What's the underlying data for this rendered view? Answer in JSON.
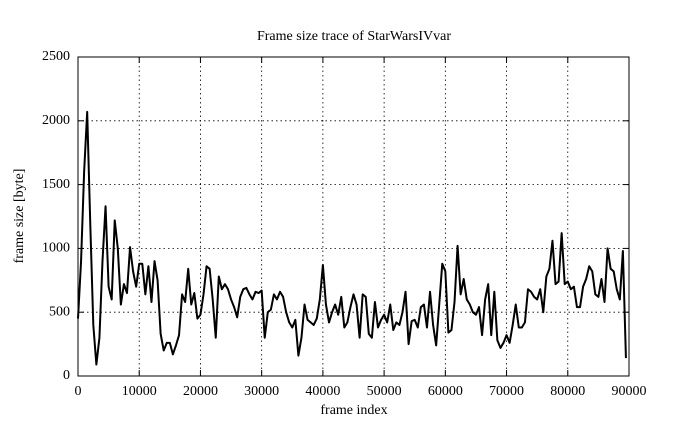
{
  "chart_data": {
    "type": "line",
    "title": "Frame size trace of StarWarsIVvar",
    "xlabel": "frame index",
    "ylabel": "frame size [byte]",
    "xlim": [
      0,
      90000
    ],
    "ylim": [
      0,
      2500
    ],
    "xticks": [
      0,
      10000,
      20000,
      30000,
      40000,
      50000,
      60000,
      70000,
      80000,
      90000
    ],
    "yticks": [
      0,
      500,
      1000,
      1500,
      2000,
      2500
    ],
    "grid": true,
    "series": [
      {
        "color": "#000000",
        "x": [
          0,
          500,
          1000,
          1500,
          2000,
          2500,
          3000,
          3500,
          4000,
          4500,
          5000,
          5500,
          6000,
          6500,
          7000,
          7500,
          8000,
          8500,
          9000,
          9500,
          10000,
          10500,
          11000,
          11500,
          12000,
          12500,
          13000,
          13500,
          14000,
          14500,
          15000,
          15500,
          16000,
          16500,
          17000,
          17500,
          18000,
          18500,
          19000,
          19500,
          20000,
          20500,
          21000,
          21500,
          22000,
          22500,
          23000,
          23500,
          24000,
          24500,
          25000,
          25500,
          26000,
          26500,
          27000,
          27500,
          28000,
          28500,
          29000,
          29500,
          30000,
          30500,
          31000,
          31500,
          32000,
          32500,
          33000,
          33500,
          34000,
          34500,
          35000,
          35500,
          36000,
          36500,
          37000,
          37500,
          38000,
          38500,
          39000,
          39500,
          40000,
          40500,
          41000,
          41500,
          42000,
          42500,
          43000,
          43500,
          44000,
          44500,
          45000,
          45500,
          46000,
          46500,
          47000,
          47500,
          48000,
          48500,
          49000,
          49500,
          50000,
          50500,
          51000,
          51500,
          52000,
          52500,
          53000,
          53500,
          54000,
          54500,
          55000,
          55500,
          56000,
          56500,
          57000,
          57500,
          58000,
          58500,
          59000,
          59500,
          60000,
          60500,
          61000,
          61500,
          62000,
          62500,
          63000,
          63500,
          64000,
          64500,
          65000,
          65500,
          66000,
          66500,
          67000,
          67500,
          68000,
          68500,
          69000,
          69500,
          70000,
          70500,
          71000,
          71500,
          72000,
          72500,
          73000,
          73500,
          74000,
          74500,
          75000,
          75500,
          76000,
          76500,
          77000,
          77500,
          78000,
          78500,
          79000,
          79500,
          80000,
          80500,
          81000,
          81500,
          82000,
          82500,
          83000,
          83500,
          84000,
          84500,
          85000,
          85500,
          86000,
          86500,
          87000,
          87500,
          88000,
          88500,
          89000,
          89500
        ],
        "values": [
          450,
          900,
          1600,
          2070,
          1200,
          400,
          90,
          300,
          900,
          1330,
          700,
          600,
          1220,
          1000,
          560,
          720,
          650,
          1010,
          820,
          700,
          880,
          880,
          640,
          860,
          580,
          900,
          750,
          330,
          200,
          260,
          260,
          170,
          240,
          320,
          640,
          580,
          840,
          560,
          650,
          450,
          480,
          640,
          860,
          840,
          600,
          300,
          780,
          680,
          720,
          680,
          600,
          540,
          460,
          620,
          680,
          690,
          640,
          600,
          660,
          650,
          670,
          300,
          500,
          520,
          640,
          600,
          660,
          620,
          500,
          420,
          380,
          440,
          160,
          300,
          560,
          440,
          420,
          400,
          450,
          600,
          870,
          560,
          420,
          500,
          560,
          480,
          620,
          380,
          420,
          540,
          640,
          560,
          300,
          640,
          620,
          330,
          300,
          580,
          380,
          440,
          480,
          420,
          560,
          360,
          420,
          400,
          500,
          660,
          250,
          430,
          440,
          380,
          540,
          560,
          380,
          660,
          400,
          240,
          560,
          880,
          820,
          340,
          360,
          580,
          1020,
          640,
          760,
          600,
          560,
          500,
          480,
          540,
          320,
          600,
          720,
          320,
          660,
          280,
          220,
          260,
          320,
          260,
          400,
          560,
          380,
          380,
          420,
          680,
          660,
          620,
          600,
          680,
          500,
          780,
          840,
          1060,
          720,
          740,
          1120,
          720,
          740,
          680,
          700,
          540,
          540,
          700,
          760,
          860,
          820,
          640,
          620,
          760,
          580,
          1000,
          840,
          820,
          680,
          600,
          980,
          140
        ]
      }
    ]
  }
}
